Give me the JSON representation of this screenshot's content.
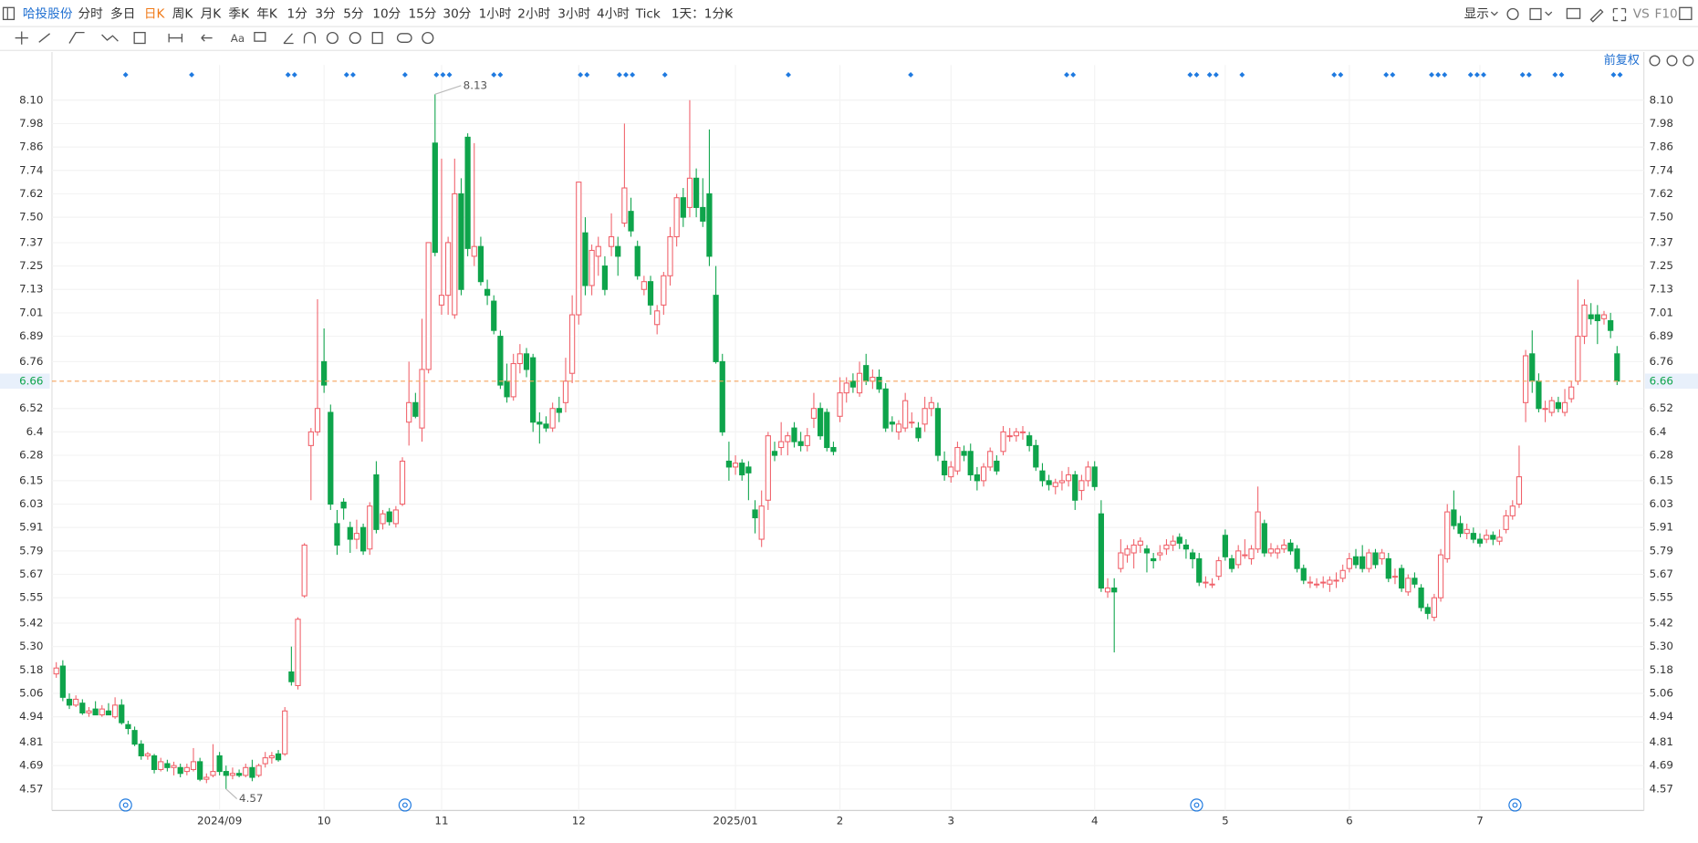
{
  "toolbar": {
    "stock": "哈投股份",
    "periods": [
      "分时",
      "多日",
      "日K",
      "周K",
      "月K",
      "季K",
      "年K",
      "1分",
      "3分",
      "5分",
      "10分",
      "15分",
      "30分",
      "1小时",
      "2小时",
      "3小时",
      "4小时",
      "Tick"
    ],
    "range": "1天：1分K",
    "display": "显示",
    "vs": "VS",
    "f10": "F10",
    "adjust": "前复权"
  },
  "chart_data": {
    "type": "candlestick",
    "up_color": "#f0616a",
    "down_color": "#0ea44b",
    "last_color": "#f5a35c",
    "xlim": [
      -0.66,
      243.1
    ],
    "ylim": [
      4.46,
      8.28
    ],
    "xticks": [
      {
        "value": 25,
        "label": "2024/09"
      },
      {
        "value": 41,
        "label": "10"
      },
      {
        "value": 59,
        "label": "11"
      },
      {
        "value": 80,
        "label": "12"
      },
      {
        "value": 104,
        "label": "2025/01"
      },
      {
        "value": 120,
        "label": "2"
      },
      {
        "value": 137,
        "label": "3"
      },
      {
        "value": 159,
        "label": "4"
      },
      {
        "value": 179,
        "label": "5"
      },
      {
        "value": 198,
        "label": "6"
      },
      {
        "value": 218,
        "label": "7"
      }
    ],
    "yticks": [
      {
        "value": 8.1,
        "label": "8.10"
      },
      7.98,
      7.86,
      7.74,
      7.62,
      {
        "value": 7.5,
        "label": "7.50"
      },
      7.37,
      7.25,
      7.13,
      7.01,
      6.89,
      6.76,
      6.52,
      6.4,
      6.28,
      6.15,
      6.03,
      5.91,
      5.79,
      5.67,
      5.55,
      5.42,
      {
        "value": 5.3,
        "label": "5.30"
      },
      5.18,
      5.06,
      4.94,
      4.81,
      4.69,
      4.57
    ],
    "grid": true,
    "ohlc": [
      [
        5.16,
        5.22,
        5.14,
        5.19
      ],
      [
        5.2,
        5.23,
        5.02,
        5.04
      ],
      [
        5.03,
        5.06,
        4.98,
        5.0
      ],
      [
        5.0,
        5.05,
        4.99,
        5.03
      ],
      [
        5.01,
        5.03,
        4.95,
        4.96
      ],
      [
        4.96,
        4.99,
        4.94,
        4.97
      ],
      [
        4.98,
        5.02,
        4.95,
        4.95
      ],
      [
        4.95,
        5.0,
        4.94,
        4.98
      ],
      [
        4.97,
        5.01,
        4.95,
        4.95
      ],
      [
        4.94,
        5.04,
        4.93,
        5.0
      ],
      [
        5.0,
        5.03,
        4.9,
        4.91
      ],
      [
        4.9,
        4.92,
        4.85,
        4.88
      ],
      [
        4.87,
        4.89,
        4.79,
        4.8
      ],
      [
        4.8,
        4.82,
        4.72,
        4.74
      ],
      [
        4.74,
        4.76,
        4.72,
        4.75
      ],
      [
        4.74,
        4.75,
        4.65,
        4.67
      ],
      [
        4.67,
        4.73,
        4.66,
        4.71
      ],
      [
        4.7,
        4.72,
        4.66,
        4.68
      ],
      [
        4.68,
        4.71,
        4.64,
        4.69
      ],
      [
        4.68,
        4.7,
        4.63,
        4.65
      ],
      [
        4.66,
        4.7,
        4.64,
        4.68
      ],
      [
        4.67,
        4.78,
        4.66,
        4.71
      ],
      [
        4.71,
        4.73,
        4.61,
        4.62
      ],
      [
        4.62,
        4.65,
        4.6,
        4.63
      ],
      [
        4.64,
        4.8,
        4.63,
        4.66
      ],
      [
        4.74,
        4.76,
        4.64,
        4.66
      ],
      [
        4.66,
        4.69,
        4.57,
        4.64
      ],
      [
        4.64,
        4.68,
        4.62,
        4.65
      ],
      [
        4.65,
        4.67,
        4.63,
        4.64
      ],
      [
        4.64,
        4.7,
        4.63,
        4.68
      ],
      [
        4.68,
        4.72,
        4.61,
        4.63
      ],
      [
        4.64,
        4.7,
        4.63,
        4.69
      ],
      [
        4.7,
        4.76,
        4.68,
        4.73
      ],
      [
        4.73,
        4.76,
        4.7,
        4.74
      ],
      [
        4.75,
        4.77,
        4.71,
        4.72
      ],
      [
        4.75,
        4.99,
        4.74,
        4.97
      ],
      [
        5.17,
        5.3,
        5.1,
        5.12
      ],
      [
        5.1,
        5.45,
        5.08,
        5.44
      ],
      [
        5.56,
        5.83,
        5.55,
        5.82
      ],
      [
        6.33,
        6.42,
        6.05,
        6.4
      ],
      [
        6.4,
        7.08,
        6.38,
        6.52
      ],
      [
        6.76,
        6.93,
        6.6,
        6.64
      ],
      [
        6.5,
        6.54,
        6.0,
        6.03
      ],
      [
        5.93,
        6.0,
        5.77,
        5.82
      ],
      [
        6.04,
        6.06,
        5.95,
        6.01
      ],
      [
        5.91,
        5.94,
        5.78,
        5.85
      ],
      [
        5.85,
        5.95,
        5.8,
        5.88
      ],
      [
        5.91,
        5.93,
        5.77,
        5.79
      ],
      [
        5.8,
        6.04,
        5.77,
        6.02
      ],
      [
        6.18,
        6.25,
        5.88,
        5.9
      ],
      [
        5.93,
        6.0,
        5.9,
        5.98
      ],
      [
        5.99,
        6.01,
        5.92,
        5.94
      ],
      [
        5.93,
        6.02,
        5.91,
        6.0
      ],
      [
        6.03,
        6.27,
        6.02,
        6.25
      ],
      [
        6.45,
        6.76,
        6.33,
        6.55
      ],
      [
        6.55,
        6.6,
        6.47,
        6.48
      ],
      [
        6.42,
        6.98,
        6.35,
        6.72
      ],
      [
        6.72,
        7.37,
        6.7,
        7.37
      ],
      [
        7.88,
        8.13,
        7.3,
        7.32
      ],
      [
        7.05,
        7.8,
        7.0,
        7.1
      ],
      [
        7.1,
        7.4,
        7.0,
        7.37
      ],
      [
        7.0,
        7.8,
        6.98,
        7.62
      ],
      [
        7.62,
        7.7,
        7.1,
        7.13
      ],
      [
        7.91,
        7.93,
        7.3,
        7.34
      ],
      [
        7.3,
        7.88,
        7.25,
        7.35
      ],
      [
        7.35,
        7.4,
        7.15,
        7.17
      ],
      [
        7.13,
        7.18,
        7.05,
        7.1
      ],
      [
        7.07,
        7.1,
        6.9,
        6.92
      ],
      [
        6.89,
        6.92,
        6.62,
        6.64
      ],
      [
        6.66,
        6.75,
        6.55,
        6.58
      ],
      [
        6.58,
        6.8,
        6.56,
        6.75
      ],
      [
        6.75,
        6.85,
        6.7,
        6.8
      ],
      [
        6.8,
        6.83,
        6.68,
        6.72
      ],
      [
        6.78,
        6.8,
        6.4,
        6.45
      ],
      [
        6.45,
        6.5,
        6.34,
        6.44
      ],
      [
        6.44,
        6.48,
        6.4,
        6.42
      ],
      [
        6.42,
        6.55,
        6.4,
        6.52
      ],
      [
        6.52,
        6.58,
        6.45,
        6.5
      ],
      [
        6.55,
        6.78,
        6.5,
        6.66
      ],
      [
        6.7,
        7.1,
        6.65,
        7.0
      ],
      [
        7.0,
        7.68,
        6.95,
        7.68
      ],
      [
        7.42,
        7.5,
        7.1,
        7.15
      ],
      [
        7.15,
        7.36,
        7.1,
        7.33
      ],
      [
        7.3,
        7.4,
        7.2,
        7.35
      ],
      [
        7.25,
        7.3,
        7.1,
        7.13
      ],
      [
        7.35,
        7.52,
        7.3,
        7.4
      ],
      [
        7.35,
        7.4,
        7.2,
        7.3
      ],
      [
        7.47,
        7.98,
        7.45,
        7.65
      ],
      [
        7.53,
        7.6,
        7.4,
        7.43
      ],
      [
        7.35,
        7.38,
        7.18,
        7.2
      ],
      [
        7.13,
        7.2,
        7.1,
        7.17
      ],
      [
        7.17,
        7.2,
        7.0,
        7.05
      ],
      [
        6.95,
        7.05,
        6.9,
        7.02
      ],
      [
        7.05,
        7.22,
        7.0,
        7.2
      ],
      [
        7.2,
        7.45,
        7.15,
        7.4
      ],
      [
        7.4,
        7.62,
        7.35,
        7.6
      ],
      [
        7.6,
        7.65,
        7.45,
        7.5
      ],
      [
        7.55,
        8.1,
        7.5,
        7.7
      ],
      [
        7.7,
        7.75,
        7.5,
        7.55
      ],
      [
        7.55,
        7.7,
        7.45,
        7.48
      ],
      [
        7.62,
        7.95,
        7.25,
        7.3
      ],
      [
        7.1,
        7.25,
        6.75,
        6.76
      ],
      [
        6.76,
        6.8,
        6.38,
        6.4
      ],
      [
        6.25,
        6.35,
        6.15,
        6.22
      ],
      [
        6.22,
        6.28,
        6.18,
        6.24
      ],
      [
        6.24,
        6.26,
        6.15,
        6.18
      ],
      [
        6.22,
        6.25,
        6.05,
        6.19
      ],
      [
        6.0,
        6.05,
        5.88,
        5.96
      ],
      [
        5.85,
        6.1,
        5.81,
        6.02
      ],
      [
        6.05,
        6.4,
        6.0,
        6.38
      ],
      [
        6.3,
        6.35,
        6.25,
        6.28
      ],
      [
        6.32,
        6.45,
        6.28,
        6.35
      ],
      [
        6.35,
        6.4,
        6.28,
        6.38
      ],
      [
        6.42,
        6.45,
        6.32,
        6.35
      ],
      [
        6.35,
        6.4,
        6.3,
        6.33
      ],
      [
        6.33,
        6.42,
        6.3,
        6.38
      ],
      [
        6.47,
        6.6,
        6.42,
        6.52
      ],
      [
        6.52,
        6.55,
        6.36,
        6.38
      ],
      [
        6.5,
        6.52,
        6.3,
        6.32
      ],
      [
        6.32,
        6.35,
        6.28,
        6.3
      ],
      [
        6.48,
        6.68,
        6.45,
        6.6
      ],
      [
        6.6,
        6.68,
        6.55,
        6.65
      ],
      [
        6.66,
        6.7,
        6.6,
        6.63
      ],
      [
        6.6,
        6.76,
        6.58,
        6.7
      ],
      [
        6.74,
        6.8,
        6.64,
        6.66
      ],
      [
        6.66,
        6.72,
        6.62,
        6.68
      ],
      [
        6.68,
        6.72,
        6.6,
        6.62
      ],
      [
        6.62,
        6.65,
        6.4,
        6.42
      ],
      [
        6.45,
        6.48,
        6.4,
        6.44
      ],
      [
        6.4,
        6.46,
        6.36,
        6.44
      ],
      [
        6.42,
        6.6,
        6.4,
        6.56
      ],
      [
        6.45,
        6.5,
        6.42,
        6.45
      ],
      [
        6.42,
        6.45,
        6.35,
        6.37
      ],
      [
        6.44,
        6.58,
        6.4,
        6.52
      ],
      [
        6.52,
        6.58,
        6.48,
        6.55
      ],
      [
        6.52,
        6.55,
        6.25,
        6.28
      ],
      [
        6.25,
        6.3,
        6.15,
        6.18
      ],
      [
        6.17,
        6.25,
        6.14,
        6.22
      ],
      [
        6.2,
        6.35,
        6.18,
        6.32
      ],
      [
        6.3,
        6.33,
        6.25,
        6.28
      ],
      [
        6.3,
        6.34,
        6.15,
        6.18
      ],
      [
        6.18,
        6.22,
        6.1,
        6.15
      ],
      [
        6.15,
        6.24,
        6.12,
        6.22
      ],
      [
        6.22,
        6.32,
        6.2,
        6.3
      ],
      [
        6.25,
        6.28,
        6.18,
        6.2
      ],
      [
        6.3,
        6.43,
        6.28,
        6.4
      ],
      [
        6.38,
        6.42,
        6.35,
        6.38
      ],
      [
        6.38,
        6.42,
        6.35,
        6.4
      ],
      [
        6.4,
        6.43,
        6.36,
        6.4
      ],
      [
        6.38,
        6.4,
        6.3,
        6.33
      ],
      [
        6.33,
        6.36,
        6.2,
        6.22
      ],
      [
        6.2,
        6.24,
        6.12,
        6.15
      ],
      [
        6.15,
        6.18,
        6.1,
        6.13
      ],
      [
        6.12,
        6.16,
        6.08,
        6.14
      ],
      [
        6.14,
        6.2,
        6.1,
        6.15
      ],
      [
        6.15,
        6.22,
        6.12,
        6.18
      ],
      [
        6.18,
        6.2,
        6.0,
        6.05
      ],
      [
        6.1,
        6.18,
        6.05,
        6.15
      ],
      [
        6.15,
        6.25,
        6.12,
        6.22
      ],
      [
        6.22,
        6.25,
        6.1,
        6.12
      ],
      [
        5.98,
        6.05,
        5.58,
        5.6
      ],
      [
        5.58,
        5.65,
        5.55,
        5.6
      ],
      [
        5.6,
        5.65,
        5.27,
        5.58
      ],
      [
        5.7,
        5.85,
        5.68,
        5.78
      ],
      [
        5.77,
        5.82,
        5.73,
        5.8
      ],
      [
        5.78,
        5.85,
        5.7,
        5.82
      ],
      [
        5.82,
        5.86,
        5.78,
        5.84
      ],
      [
        5.8,
        5.82,
        5.68,
        5.78
      ],
      [
        5.75,
        5.78,
        5.7,
        5.74
      ],
      [
        5.77,
        5.82,
        5.74,
        5.78
      ],
      [
        5.8,
        5.85,
        5.77,
        5.82
      ],
      [
        5.82,
        5.87,
        5.79,
        5.84
      ],
      [
        5.86,
        5.88,
        5.8,
        5.83
      ],
      [
        5.82,
        5.85,
        5.75,
        5.8
      ],
      [
        5.78,
        5.8,
        5.7,
        5.75
      ],
      [
        5.75,
        5.78,
        5.61,
        5.63
      ],
      [
        5.63,
        5.66,
        5.6,
        5.63
      ],
      [
        5.62,
        5.65,
        5.6,
        5.62
      ],
      [
        5.66,
        5.76,
        5.64,
        5.74
      ],
      [
        5.87,
        5.9,
        5.74,
        5.76
      ],
      [
        5.75,
        5.77,
        5.68,
        5.7
      ],
      [
        5.72,
        5.82,
        5.7,
        5.79
      ],
      [
        5.77,
        5.85,
        5.75,
        5.77
      ],
      [
        5.75,
        5.82,
        5.72,
        5.8
      ],
      [
        5.8,
        6.12,
        5.78,
        5.99
      ],
      [
        5.93,
        5.95,
        5.76,
        5.78
      ],
      [
        5.78,
        5.83,
        5.76,
        5.8
      ],
      [
        5.78,
        5.82,
        5.75,
        5.8
      ],
      [
        5.8,
        5.85,
        5.78,
        5.82
      ],
      [
        5.83,
        5.85,
        5.77,
        5.79
      ],
      [
        5.8,
        5.82,
        5.68,
        5.7
      ],
      [
        5.7,
        5.72,
        5.62,
        5.64
      ],
      [
        5.63,
        5.66,
        5.6,
        5.63
      ],
      [
        5.62,
        5.65,
        5.6,
        5.62
      ],
      [
        5.63,
        5.66,
        5.6,
        5.63
      ],
      [
        5.62,
        5.66,
        5.58,
        5.64
      ],
      [
        5.64,
        5.68,
        5.6,
        5.64
      ],
      [
        5.65,
        5.72,
        5.63,
        5.69
      ],
      [
        5.7,
        5.78,
        5.68,
        5.75
      ],
      [
        5.76,
        5.8,
        5.7,
        5.72
      ],
      [
        5.76,
        5.82,
        5.68,
        5.7
      ],
      [
        5.7,
        5.8,
        5.68,
        5.78
      ],
      [
        5.78,
        5.8,
        5.7,
        5.72
      ],
      [
        5.75,
        5.8,
        5.72,
        5.78
      ],
      [
        5.75,
        5.78,
        5.63,
        5.65
      ],
      [
        5.66,
        5.7,
        5.62,
        5.66
      ],
      [
        5.7,
        5.72,
        5.58,
        5.6
      ],
      [
        5.58,
        5.67,
        5.56,
        5.65
      ],
      [
        5.65,
        5.68,
        5.6,
        5.62
      ],
      [
        5.6,
        5.62,
        5.48,
        5.5
      ],
      [
        5.5,
        5.52,
        5.44,
        5.47
      ],
      [
        5.45,
        5.57,
        5.43,
        5.55
      ],
      [
        5.55,
        5.8,
        5.53,
        5.77
      ],
      [
        5.75,
        6.03,
        5.73,
        5.99
      ],
      [
        6.0,
        6.1,
        5.9,
        5.92
      ],
      [
        5.93,
        5.97,
        5.86,
        5.88
      ],
      [
        5.88,
        5.93,
        5.85,
        5.9
      ],
      [
        5.88,
        5.91,
        5.83,
        5.85
      ],
      [
        5.85,
        5.88,
        5.81,
        5.83
      ],
      [
        5.85,
        5.9,
        5.83,
        5.87
      ],
      [
        5.87,
        5.89,
        5.82,
        5.85
      ],
      [
        5.84,
        5.9,
        5.82,
        5.86
      ],
      [
        5.9,
        6.0,
        5.88,
        5.97
      ],
      [
        5.97,
        6.05,
        5.95,
        6.02
      ],
      [
        6.03,
        6.33,
        6.01,
        6.17
      ],
      [
        6.55,
        6.82,
        6.45,
        6.79
      ],
      [
        6.8,
        6.92,
        6.6,
        6.66
      ],
      [
        6.66,
        6.7,
        6.5,
        6.52
      ],
      [
        6.52,
        6.56,
        6.45,
        6.52
      ],
      [
        6.5,
        6.58,
        6.48,
        6.56
      ],
      [
        6.55,
        6.58,
        6.5,
        6.52
      ],
      [
        6.5,
        6.62,
        6.48,
        6.55
      ],
      [
        6.57,
        6.66,
        6.55,
        6.63
      ],
      [
        6.66,
        7.18,
        6.64,
        6.89
      ],
      [
        6.89,
        7.08,
        6.85,
        7.05
      ],
      [
        7.0,
        7.06,
        6.95,
        6.98
      ],
      [
        7.0,
        7.05,
        6.85,
        6.97
      ],
      [
        6.98,
        7.02,
        6.95,
        7.0
      ],
      [
        6.97,
        7.01,
        6.88,
        6.92
      ],
      [
        6.8,
        6.84,
        6.64,
        6.66
      ]
    ]
  }
}
